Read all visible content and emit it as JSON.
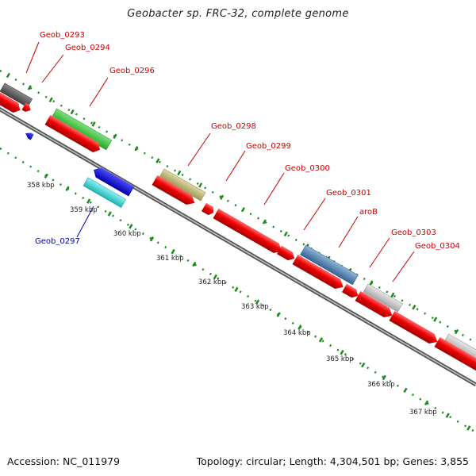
{
  "title": "Geobacter sp. FRC-32, complete genome",
  "footer": {
    "accession": "Accession: NC_011979",
    "topology": "Topology: circular; Length: 4,304,501 bp; Genes: 3,855"
  },
  "colors": {
    "label_top": "#cc0000",
    "label_bottom": "#0000aa",
    "backbone": "#8a8a8a",
    "tick": "#1f8a1f",
    "cds": "#ee0000",
    "geob_0293": "#555555",
    "geob_0296": "#33cc33",
    "geob_0297": "#22cccc",
    "geob_0297_strand": "#0000dd",
    "geob_0298": "#bdb76b",
    "aroB": "#4682b4",
    "geob_0303": "#bbbbbb",
    "geob_0304": "#bbbbbb"
  },
  "kbp_labels": [
    "358 kbp",
    "359 kbp",
    "360 kbp",
    "361 kbp",
    "362 kbp",
    "363 kbp",
    "364 kbp",
    "365 kbp",
    "366 kbp",
    "367 kbp"
  ],
  "features": [
    {
      "id": "geob_0293",
      "label": "Geob_0293"
    },
    {
      "id": "geob_0294",
      "label": "Geob_0294"
    },
    {
      "id": "geob_0296",
      "label": "Geob_0296"
    },
    {
      "id": "geob_0297",
      "label": "Geob_0297"
    },
    {
      "id": "geob_0298",
      "label": "Geob_0298"
    },
    {
      "id": "geob_0299",
      "label": "Geob_0299"
    },
    {
      "id": "geob_0300",
      "label": "Geob_0300"
    },
    {
      "id": "geob_0301",
      "label": "Geob_0301"
    },
    {
      "id": "arob",
      "label": "aroB"
    },
    {
      "id": "geob_0303",
      "label": "Geob_0303"
    },
    {
      "id": "geob_0304",
      "label": "Geob_0304"
    }
  ]
}
